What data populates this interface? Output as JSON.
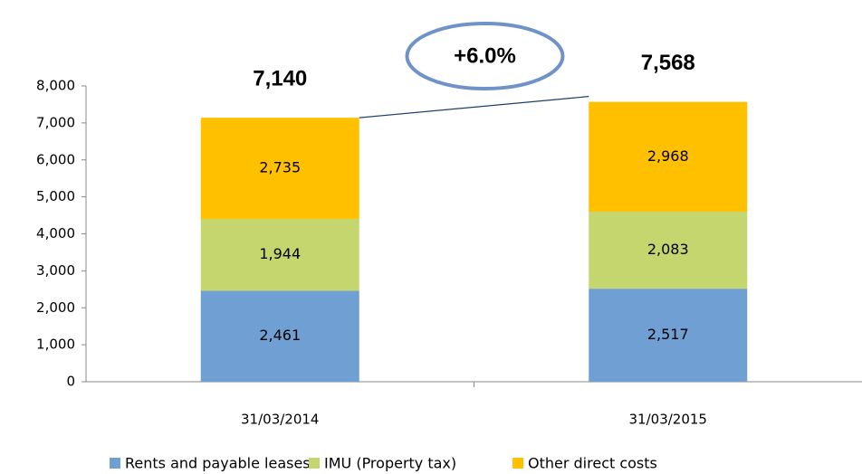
{
  "chart_data": {
    "type": "stacked_bar",
    "categories": [
      "31/03/2014",
      "31/03/2015"
    ],
    "series": [
      {
        "name": "Rents and payable leases",
        "color": "#6f9fd3",
        "values": [
          2461,
          2517
        ],
        "value_labels": [
          "2,461",
          "2,517"
        ]
      },
      {
        "name": "IMU (Property tax)",
        "color": "#c5d66f",
        "values": [
          1944,
          2083
        ],
        "value_labels": [
          "1,944",
          "2,083"
        ]
      },
      {
        "name": "Other direct costs",
        "color": "#ffc000",
        "values": [
          2735,
          2968
        ],
        "value_labels": [
          "2,735",
          "2,968"
        ]
      }
    ],
    "totals": [
      7140,
      7568
    ],
    "total_labels": [
      "7,140",
      "7,568"
    ],
    "annotation": "+6.0%",
    "ylim": [
      0,
      8000
    ],
    "yticks": [
      0,
      {
        "value": 1000,
        "label": "1,000"
      },
      {
        "value": 2000,
        "label": "2,000"
      },
      {
        "value": 3000,
        "label": "3,000"
      },
      {
        "value": 4000,
        "label": "4,000"
      },
      {
        "value": 5000,
        "label": "5,000"
      },
      {
        "value": 6000,
        "label": "6,000"
      },
      {
        "value": 7000,
        "label": "7,000"
      },
      {
        "value": 8000,
        "label": "8,000"
      }
    ],
    "grid": false,
    "legend": "bottom"
  }
}
